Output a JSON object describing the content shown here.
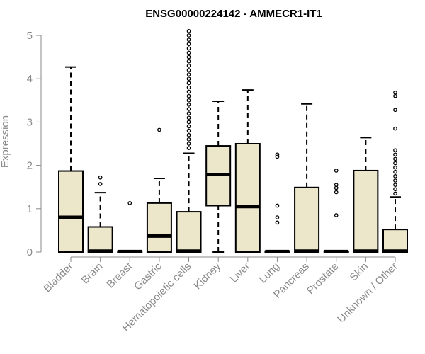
{
  "chart_data": {
    "type": "boxplot",
    "title": "ENSG00000224142 - AMMECR1-IT1",
    "xlabel": "",
    "ylabel": "Expression",
    "ylim": [
      0,
      5
    ],
    "yticks": [
      0,
      1,
      2,
      3,
      4,
      5
    ],
    "box_color": "#ece6cb",
    "line_color": "#000000",
    "categories": [
      "Bladder",
      "Brain",
      "Breast",
      "Gastric",
      "Hematopoietic cells",
      "Kidney",
      "Liver",
      "Lung",
      "Pancreas",
      "Prostate",
      "Skin",
      "Unknown / Other"
    ],
    "boxes": [
      {
        "min": 0,
        "q1": 0,
        "median": 0.8,
        "q3": 1.87,
        "max": 4.27,
        "outliers": []
      },
      {
        "min": 0,
        "q1": 0,
        "median": 0.02,
        "q3": 0.58,
        "max": 1.37,
        "outliers": [
          1.57,
          1.72
        ]
      },
      {
        "min": 0,
        "q1": 0,
        "median": 0.01,
        "q3": 0.02,
        "max": 0.02,
        "outliers": [
          1.13
        ]
      },
      {
        "min": 0,
        "q1": 0,
        "median": 0.37,
        "q3": 1.13,
        "max": 1.7,
        "outliers": [
          2.82
        ]
      },
      {
        "min": 0,
        "q1": 0,
        "median": 0.02,
        "q3": 0.93,
        "max": 2.28,
        "outliers": [
          2.4,
          2.5,
          2.6,
          2.7,
          2.8,
          2.9,
          3.0,
          3.1,
          3.2,
          3.3,
          3.4,
          3.5,
          3.6,
          3.7,
          3.8,
          3.9,
          4.0,
          4.1,
          4.2,
          4.3,
          4.4,
          4.5,
          4.6,
          4.7,
          4.8,
          4.9,
          5.0,
          5.1
        ]
      },
      {
        "min": 0,
        "q1": 1.07,
        "median": 1.79,
        "q3": 2.45,
        "max": 3.48,
        "outliers": []
      },
      {
        "min": 0,
        "q1": 0,
        "median": 1.05,
        "q3": 2.5,
        "max": 3.74,
        "outliers": []
      },
      {
        "min": 0,
        "q1": 0,
        "median": 0.01,
        "q3": 0.02,
        "max": 0.02,
        "outliers": [
          0.68,
          0.8,
          1.07,
          2.2,
          2.25
        ]
      },
      {
        "min": 0,
        "q1": 0,
        "median": 0.02,
        "q3": 1.49,
        "max": 3.42,
        "outliers": []
      },
      {
        "min": 0,
        "q1": 0,
        "median": 0.01,
        "q3": 0.02,
        "max": 0.02,
        "outliers": [
          0.85,
          1.38,
          1.48,
          1.55,
          1.88
        ]
      },
      {
        "min": 0,
        "q1": 0,
        "median": 0.02,
        "q3": 1.88,
        "max": 2.64,
        "outliers": []
      },
      {
        "min": 0,
        "q1": 0,
        "median": 0.02,
        "q3": 0.52,
        "max": 1.27,
        "outliers": [
          1.35,
          1.45,
          1.55,
          1.65,
          1.75,
          1.85,
          1.95,
          2.05,
          2.15,
          2.25,
          2.35,
          2.85,
          3.28,
          3.6,
          3.68
        ]
      }
    ]
  }
}
